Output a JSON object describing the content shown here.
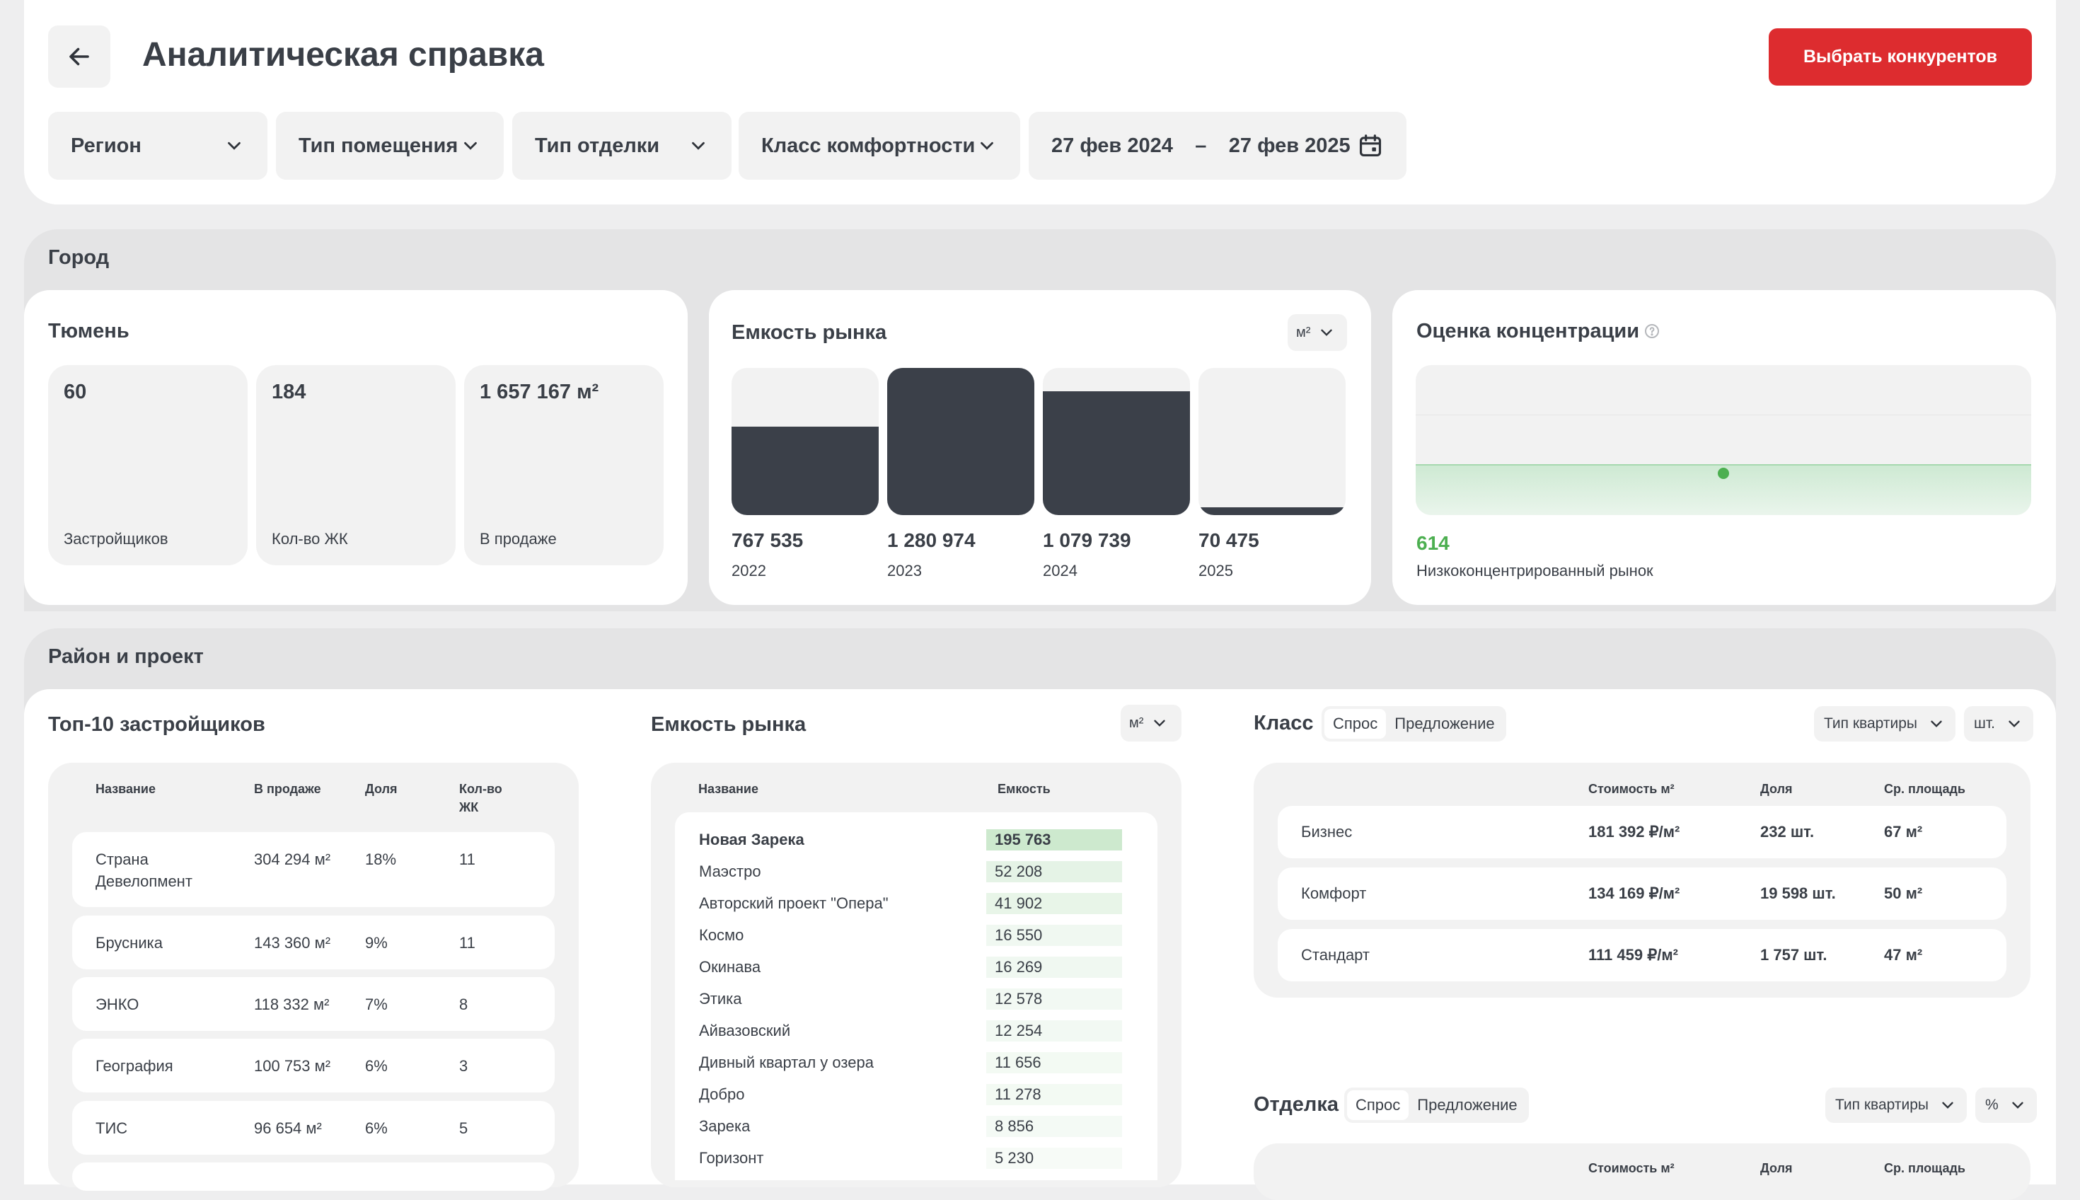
{
  "header": {
    "title": "Аналитическая справка",
    "primary_button": "Выбрать конкурентов",
    "filters": {
      "region": "Регион",
      "room_type": "Тип помещения",
      "finish_type": "Тип отделки",
      "comfort_class": "Класс комфортности"
    },
    "date_range": {
      "from": "27 фев 2024",
      "separator": "–",
      "to": "27 фев 2025"
    }
  },
  "city_section": {
    "title": "Город",
    "city": {
      "name": "Тюмень",
      "stats": [
        {
          "value": "60",
          "label": "Застройщиков"
        },
        {
          "value": "184",
          "label": "Кол-во ЖК"
        },
        {
          "value": "1 657 167 м²",
          "label": "В продаже"
        }
      ]
    },
    "market_capacity": {
      "title": "Емкость рынка",
      "unit": "м²",
      "chart_data": {
        "type": "bar",
        "categories": [
          "2022",
          "2023",
          "2024",
          "2025"
        ],
        "values": [
          767535,
          1280974,
          1079739,
          70475
        ],
        "value_labels": [
          "767 535",
          "1 280 974",
          "1 079 739",
          "70 475"
        ],
        "ylim": [
          0,
          1280974
        ],
        "grid": false,
        "bar_color": "#3b4049",
        "track_color": "#f2f2f2"
      }
    },
    "concentration": {
      "title": "Оценка концентрации",
      "value": "614",
      "label": "Низкоконцентрированный рынок",
      "value_color": "#4caf50",
      "level": 0.28
    }
  },
  "district_section": {
    "title": "Район и проект",
    "top_developers": {
      "title": "Топ-10 застройщиков",
      "columns": [
        "Название",
        "В продаже",
        "Доля",
        "Кол-во ЖК"
      ],
      "rows": [
        {
          "name": "Страна Девелопмент",
          "on_sale": "304 294 м²",
          "share": "18%",
          "count": "11"
        },
        {
          "name": "Брусника",
          "on_sale": "143 360 м²",
          "share": "9%",
          "count": "11"
        },
        {
          "name": "ЭНКО",
          "on_sale": "118 332 м²",
          "share": "7%",
          "count": "8"
        },
        {
          "name": "География",
          "on_sale": "100 753 м²",
          "share": "6%",
          "count": "3"
        },
        {
          "name": "ТИС",
          "on_sale": "96 654 м²",
          "share": "6%",
          "count": "5"
        }
      ]
    },
    "market_capacity": {
      "title": "Емкость рынка",
      "unit": "м²",
      "columns": [
        "Название",
        "Емкость"
      ],
      "rows": [
        {
          "name": "Новая Зарека",
          "value": "195 763",
          "amount": 195763
        },
        {
          "name": "Маэстро",
          "value": "52 208",
          "amount": 52208
        },
        {
          "name": "Авторский проект \"Опера\"",
          "value": "41 902",
          "amount": 41902
        },
        {
          "name": "Космо",
          "value": "16 550",
          "amount": 16550
        },
        {
          "name": "Окинава",
          "value": "16 269",
          "amount": 16269
        },
        {
          "name": "Этика",
          "value": "12 578",
          "amount": 12578
        },
        {
          "name": "Айвазовский",
          "value": "12 254",
          "amount": 12254
        },
        {
          "name": "Дивный квартал у озера",
          "value": "11 656",
          "amount": 11656
        },
        {
          "name": "Добро",
          "value": "11 278",
          "amount": 11278
        },
        {
          "name": "Зарека",
          "value": "8 856",
          "amount": 8856
        },
        {
          "name": "Горизонт",
          "value": "5 230",
          "amount": 5230
        }
      ]
    },
    "class_block": {
      "title": "Класс",
      "toggle": [
        "Спрос",
        "Предложение"
      ],
      "apartment_type": "Тип квартиры",
      "unit": "шт.",
      "columns": [
        "Стоимость м²",
        "Доля",
        "Ср. площадь"
      ],
      "rows": [
        {
          "name": "Бизнес",
          "price": "181 392 ₽/м²",
          "share": "232 шт.",
          "area": "67 м²"
        },
        {
          "name": "Комфорт",
          "price": "134 169 ₽/м²",
          "share": "19 598 шт.",
          "area": "50 м²"
        },
        {
          "name": "Стандарт",
          "price": "111 459 ₽/м²",
          "share": "1 757 шт.",
          "area": "47 м²"
        }
      ]
    },
    "finish_block": {
      "title": "Отделка",
      "toggle": [
        "Спрос",
        "Предложение"
      ],
      "apartment_type": "Тип квартиры",
      "unit": "%",
      "columns": [
        "Стоимость м²",
        "Доля",
        "Ср. площадь"
      ]
    }
  }
}
